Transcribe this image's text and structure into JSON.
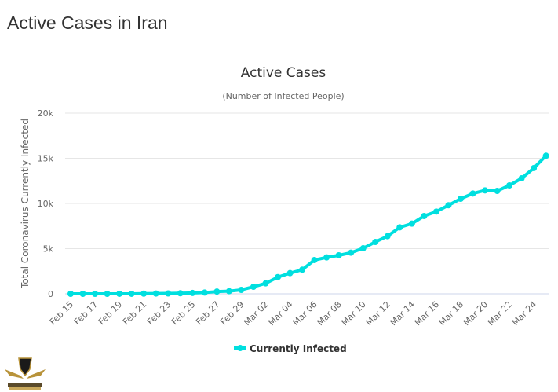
{
  "page_title": "Active Cases in Iran",
  "logo_text": "ARAB DEFENSE FORUM",
  "chart_data": {
    "type": "line",
    "title": "Active Cases",
    "subtitle": "(Number of Infected People)",
    "ylabel": "Total Coronavirus Currently Infected",
    "xlabel": "",
    "ylim": [
      0,
      20000
    ],
    "yticks": [
      0,
      5000,
      10000,
      15000,
      20000
    ],
    "ytick_labels": [
      "0",
      "5k",
      "10k",
      "15k",
      "20k"
    ],
    "grid": true,
    "legend": "bottom-center",
    "color": "#00dfdf",
    "categories": [
      "Feb 15",
      "Feb 16",
      "Feb 17",
      "Feb 18",
      "Feb 19",
      "Feb 20",
      "Feb 21",
      "Feb 22",
      "Feb 23",
      "Feb 24",
      "Feb 25",
      "Feb 26",
      "Feb 27",
      "Feb 28",
      "Feb 29",
      "Mar 01",
      "Mar 02",
      "Mar 03",
      "Mar 04",
      "Mar 05",
      "Mar 06",
      "Mar 07",
      "Mar 08",
      "Mar 09",
      "Mar 10",
      "Mar 11",
      "Mar 12",
      "Mar 13",
      "Mar 14",
      "Mar 15",
      "Mar 16",
      "Mar 17",
      "Mar 18",
      "Mar 19",
      "Mar 20",
      "Mar 21",
      "Mar 22",
      "Mar 23",
      "Mar 24",
      "Mar 25"
    ],
    "xtick_labels": [
      "Feb 15",
      "Feb 17",
      "Feb 19",
      "Feb 21",
      "Feb 23",
      "Feb 25",
      "Feb 27",
      "Feb 29",
      "Mar 02",
      "Mar 04",
      "Mar 06",
      "Mar 08",
      "Mar 10",
      "Mar 12",
      "Mar 14",
      "Mar 16",
      "Mar 18",
      "Mar 20",
      "Mar 22",
      "Mar 24"
    ],
    "series": [
      {
        "name": "Currently Infected",
        "values": [
          0,
          0,
          0,
          0,
          2,
          5,
          18,
          28,
          43,
          61,
          95,
          139,
          245,
          290,
          435,
          780,
          1160,
          1850,
          2290,
          2670,
          3740,
          4030,
          4260,
          4550,
          5040,
          5740,
          6380,
          7360,
          7770,
          8610,
          9100,
          9800,
          10520,
          11100,
          11450,
          11390,
          12000,
          12780,
          13910,
          15280
        ]
      }
    ]
  }
}
